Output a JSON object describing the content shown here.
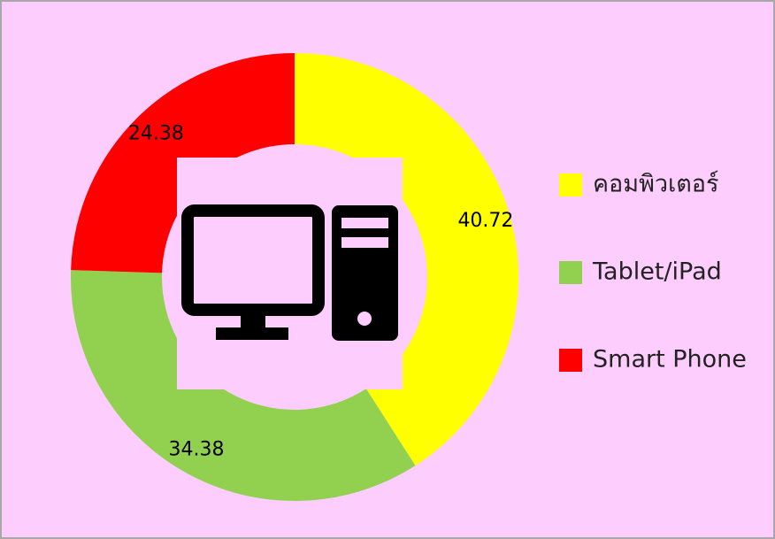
{
  "chart_data": {
    "type": "donut",
    "categories": [
      "คอมพิวเตอร์",
      "Tablet/iPad",
      "Smart Phone"
    ],
    "values": [
      40.72,
      34.38,
      24.38
    ],
    "colors": [
      "#ffff00",
      "#92d050",
      "#ff0000"
    ]
  }
}
